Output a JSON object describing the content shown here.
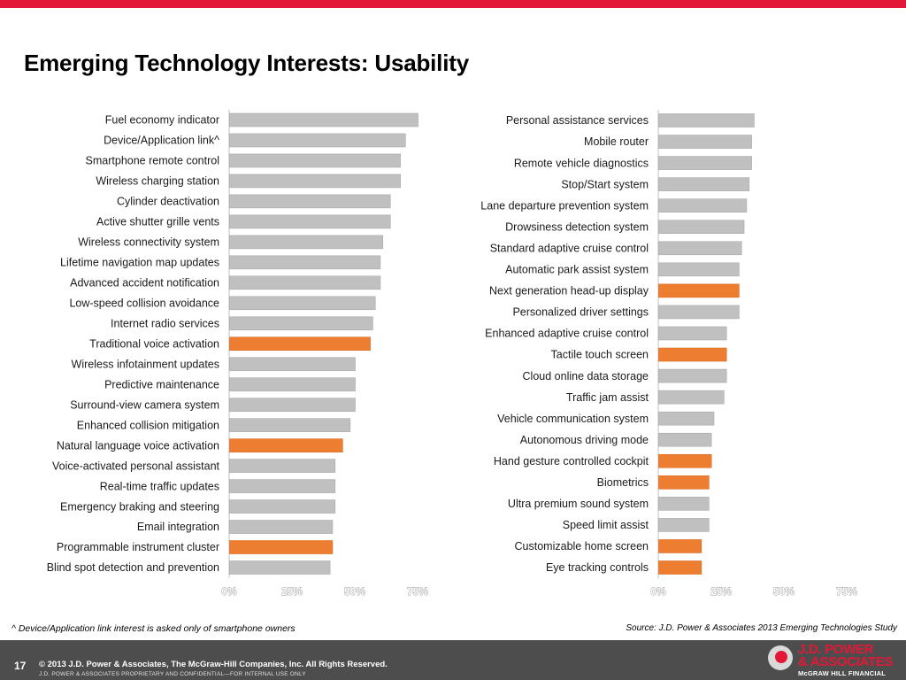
{
  "slide": {
    "title": "Emerging Technology Interests: Usability",
    "footnote": "^ Device/Application link interest is asked only of smartphone owners",
    "source": "Source: J.D. Power & Associates 2013 Emerging Technologies Study",
    "page_number": "17",
    "copyright": "© 2013  J.D. Power & Associates, The McGraw-Hill Companies, Inc. All Rights Reserved.",
    "confidential": "J.D. POWER & ASSOCIATES PROPRIETARY AND CONFIDENTIAL—FOR INTERNAL USE ONLY",
    "logo": {
      "line1": "J.D. POWER",
      "line2": "& ASSOCIATES",
      "line3": "McGRAW HILL FINANCIAL"
    }
  },
  "colors": {
    "default_bar": "#c0c0c0",
    "highlight_bar": "#ed7d31",
    "top_bar": "#e31837",
    "footer": "#4d4d4d"
  },
  "chart_data": [
    {
      "type": "bar",
      "orientation": "horizontal",
      "xlim": [
        0,
        75
      ],
      "ticks": [
        "0%",
        "25%",
        "50%",
        "75%"
      ],
      "categories": [
        "Fuel economy indicator",
        "Device/Application link^",
        "Smartphone remote control",
        "Wireless charging station",
        "Cylinder deactivation",
        "Active shutter grille vents",
        "Wireless connectivity system",
        "Lifetime navigation map updates",
        "Advanced accident notification",
        "Low-speed collision avoidance",
        "Internet radio services",
        "Traditional voice activation",
        "Wireless infotainment updates",
        "Predictive maintenance",
        "Surround-view camera system",
        "Enhanced collision mitigation",
        "Natural language voice activation",
        "Voice-activated personal assistant",
        "Real-time traffic updates",
        "Emergency braking and steering",
        "Email integration",
        "Programmable instrument cluster",
        "Blind spot detection and prevention"
      ],
      "values": [
        75,
        70,
        68,
        68,
        64,
        64,
        61,
        60,
        60,
        58,
        57,
        56,
        50,
        50,
        50,
        48,
        45,
        42,
        42,
        42,
        41,
        41,
        40
      ],
      "highlighted": [
        false,
        false,
        false,
        false,
        false,
        false,
        false,
        false,
        false,
        false,
        false,
        true,
        false,
        false,
        false,
        false,
        true,
        false,
        false,
        false,
        false,
        true,
        false
      ]
    },
    {
      "type": "bar",
      "orientation": "horizontal",
      "xlim": [
        0,
        75
      ],
      "ticks": [
        "0%",
        "25%",
        "50%",
        "75%"
      ],
      "categories": [
        "Personal assistance services",
        "Mobile router",
        "Remote vehicle diagnostics",
        "Stop/Start system",
        "Lane departure prevention system",
        "Drowsiness detection system",
        "Standard adaptive cruise control",
        "Automatic park assist system",
        "Next generation head-up display",
        "Personalized driver settings",
        "Enhanced adaptive cruise control",
        "Tactile touch screen",
        "Cloud online data storage",
        "Traffic jam assist",
        "Vehicle communication system",
        "Autonomous driving mode",
        "Hand gesture controlled cockpit",
        "Biometrics",
        "Ultra premium sound system",
        "Speed limit assist",
        "Customizable home screen",
        "Eye tracking controls"
      ],
      "values": [
        38,
        37,
        37,
        36,
        35,
        34,
        33,
        32,
        32,
        32,
        27,
        27,
        27,
        26,
        22,
        21,
        21,
        20,
        20,
        20,
        17,
        17
      ],
      "highlighted": [
        false,
        false,
        false,
        false,
        false,
        false,
        false,
        false,
        true,
        false,
        false,
        true,
        false,
        false,
        false,
        false,
        true,
        true,
        false,
        false,
        true,
        true
      ]
    }
  ]
}
